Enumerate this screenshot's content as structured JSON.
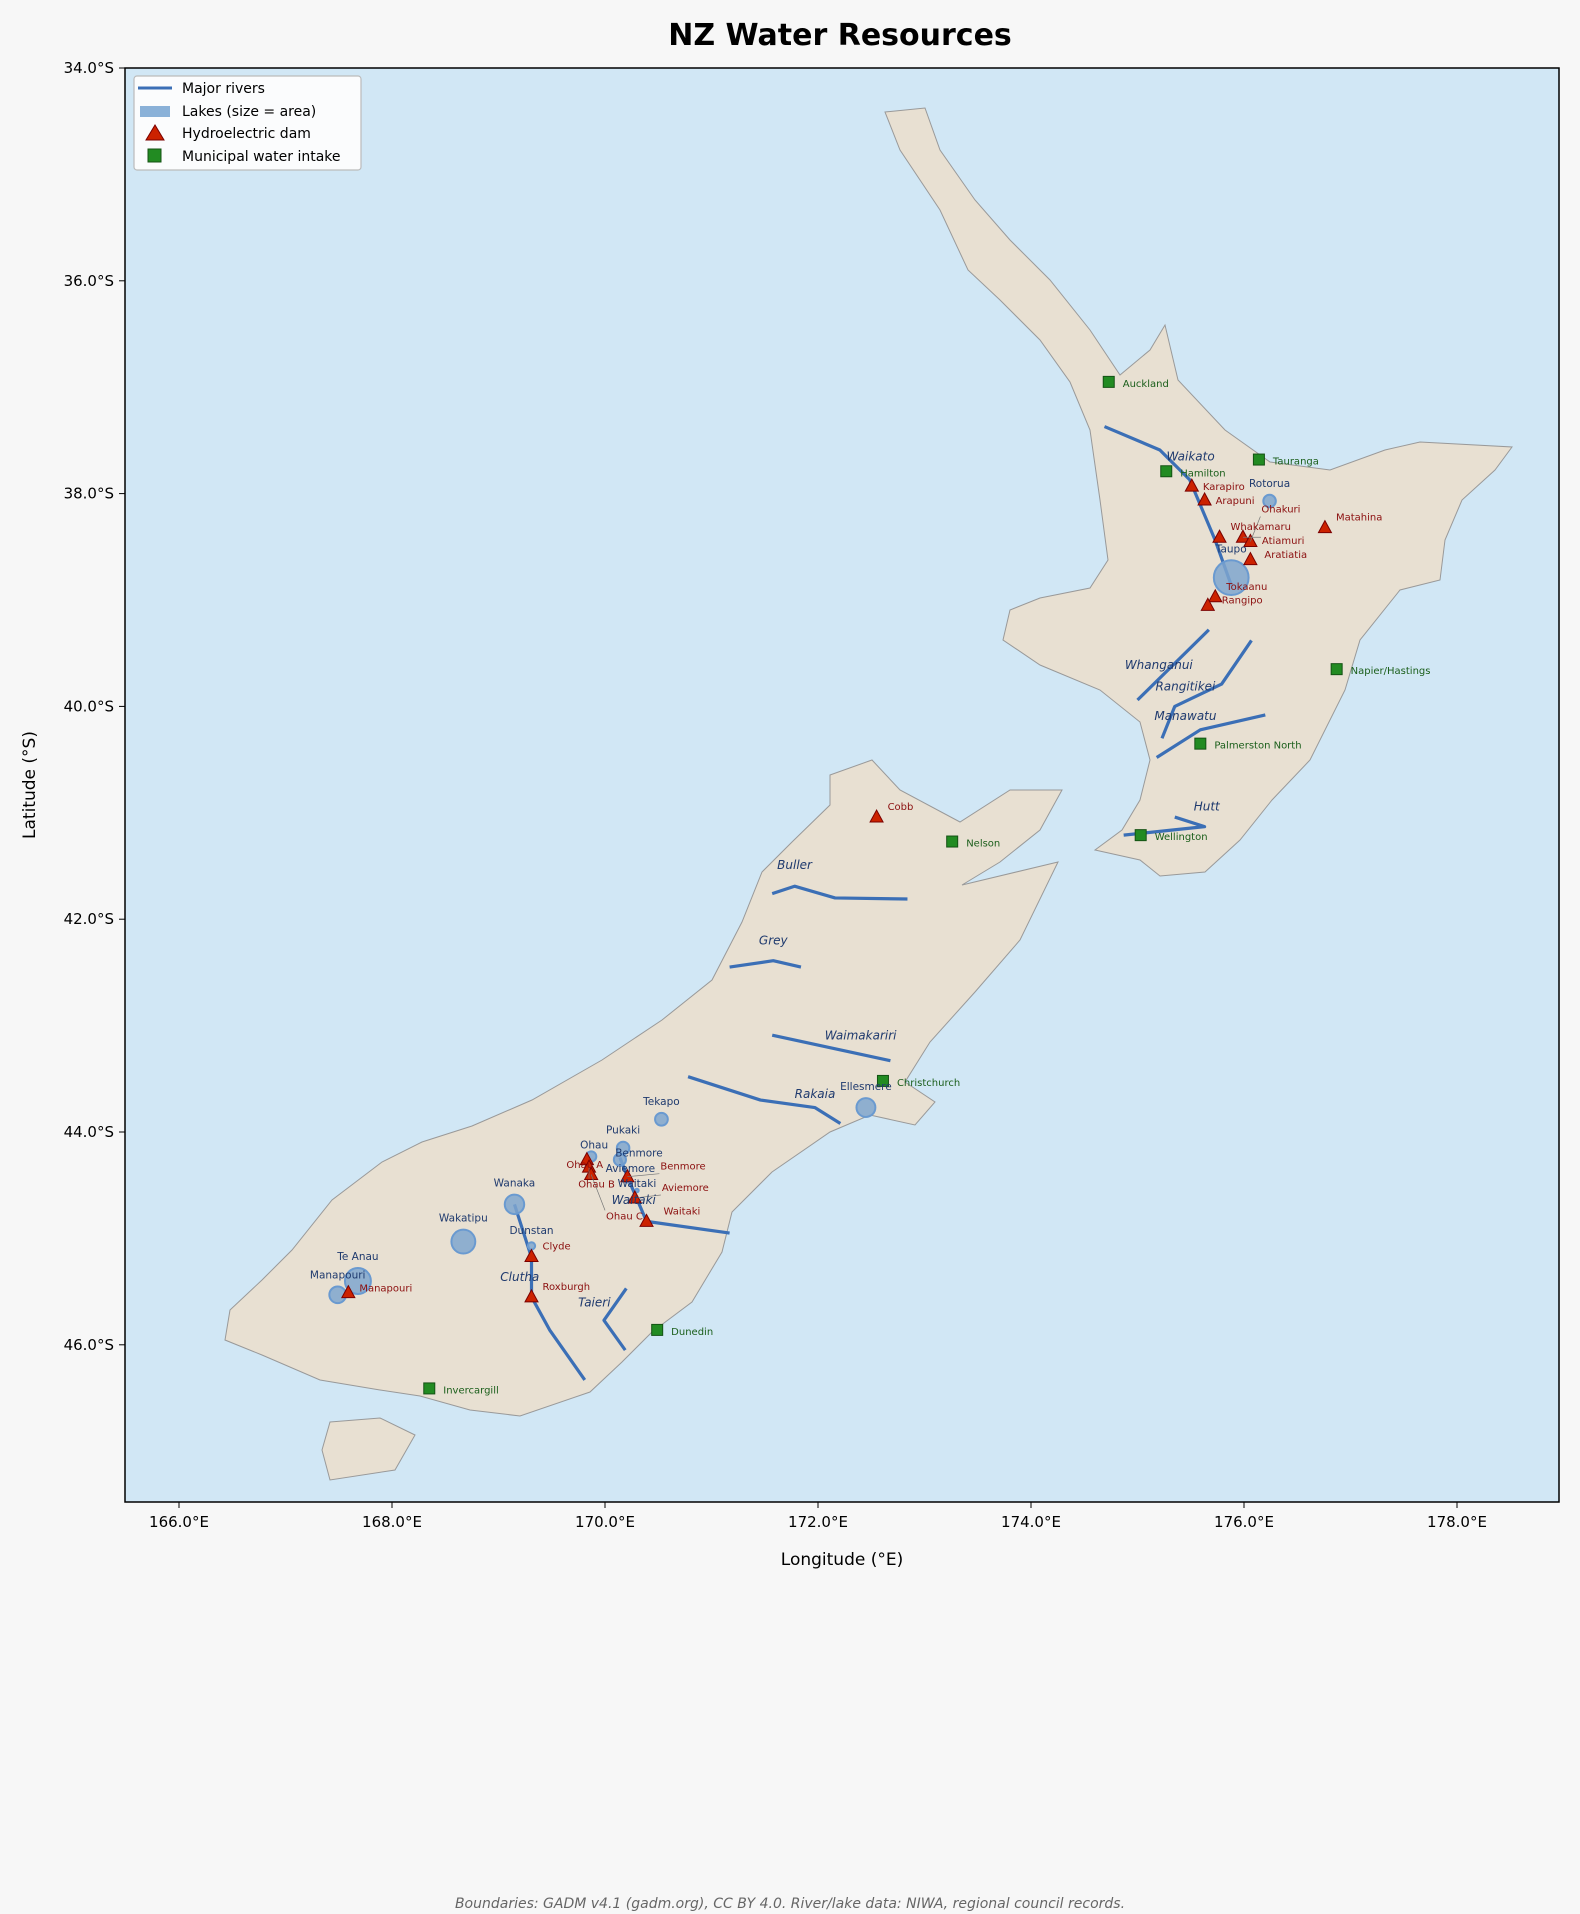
{
  "title": "NZ Water Resources",
  "xlabel": "Longitude (°E)",
  "ylabel": "Latitude (°S)",
  "footer": "Boundaries: GADM v4.1 (gadm.org), CC BY 4.0. River/lake data: NIWA, regional council records.",
  "colors": {
    "ocean": "#d1e7f5",
    "land": "#e8e0d2",
    "border": "#999999",
    "river": "#3b6fb6",
    "lake": "#7fa6cf",
    "dam": "#cc2200",
    "dam_label": "#8b0f0f",
    "intake": "#228b22",
    "intake_label": "#1a5e1a",
    "lake_label": "#1f3a6e"
  },
  "legend": {
    "position": "top-left",
    "items": [
      "Major rivers",
      "Lakes (size = area)",
      "Hydroelectric dam",
      "Municipal water intake"
    ]
  },
  "chart_data": {
    "type": "map",
    "xlim": [
      165.5,
      179.0
    ],
    "ylim": [
      -47.5,
      -34.0
    ],
    "xticks": [
      "166.0°E",
      "168.0°E",
      "170.0°E",
      "172.0°E",
      "174.0°E",
      "176.0°E",
      "178.0°E"
    ],
    "xtick_values": [
      166,
      168,
      170,
      172,
      174,
      176,
      178
    ],
    "yticks": [
      "34.0°S",
      "36.0°S",
      "38.0°S",
      "40.0°S",
      "42.0°S",
      "44.0°S",
      "46.0°S"
    ],
    "ytick_values": [
      -34,
      -36,
      -38,
      -40,
      -42,
      -44,
      -46
    ],
    "rivers": [
      {
        "name": "Waikato",
        "path": [
          [
            174.69,
            -37.37
          ],
          [
            175.21,
            -37.59
          ],
          [
            175.49,
            -37.87
          ],
          [
            175.73,
            -38.44
          ],
          [
            175.88,
            -38.86
          ]
        ],
        "label_at": [
          175.55,
          -37.78
        ]
      },
      {
        "name": "Whanganui",
        "path": [
          [
            175.0,
            -39.94
          ],
          [
            175.67,
            -39.28
          ]
        ],
        "label_at": [
          175.2,
          -39.65
        ]
      },
      {
        "name": "Rangitikei",
        "path": [
          [
            175.23,
            -40.3
          ],
          [
            175.35,
            -40.0
          ],
          [
            175.79,
            -39.79
          ],
          [
            176.07,
            -39.38
          ]
        ],
        "label_at": [
          175.45,
          -39.85
        ]
      },
      {
        "name": "Manawatu",
        "path": [
          [
            175.18,
            -40.48
          ],
          [
            175.59,
            -40.22
          ],
          [
            176.2,
            -40.08
          ]
        ],
        "label_at": [
          175.45,
          -40.13
        ]
      },
      {
        "name": "Hutt",
        "path": [
          [
            174.87,
            -41.21
          ],
          [
            175.63,
            -41.13
          ],
          [
            175.35,
            -41.04
          ]
        ],
        "label_at": [
          175.65,
          -40.98
        ]
      },
      {
        "name": "Buller",
        "path": [
          [
            171.57,
            -41.76
          ],
          [
            171.78,
            -41.69
          ],
          [
            172.16,
            -41.8
          ],
          [
            172.84,
            -41.81
          ]
        ],
        "label_at": [
          171.78,
          -41.53
        ]
      },
      {
        "name": "Grey",
        "path": [
          [
            171.17,
            -42.45
          ],
          [
            171.58,
            -42.39
          ],
          [
            171.84,
            -42.45
          ]
        ],
        "label_at": [
          171.58,
          -42.24
        ]
      },
      {
        "name": "Waimakariri",
        "path": [
          [
            171.57,
            -43.09
          ],
          [
            172.68,
            -43.33
          ]
        ],
        "label_at": [
          172.4,
          -43.13
        ]
      },
      {
        "name": "Rakaia",
        "path": [
          [
            170.78,
            -43.48
          ],
          [
            171.46,
            -43.7
          ],
          [
            171.97,
            -43.77
          ],
          [
            172.21,
            -43.92
          ]
        ],
        "label_at": [
          172.0,
          -43.63
        ]
      },
      {
        "name": "Waitaki",
        "path": [
          [
            170.14,
            -44.24
          ],
          [
            170.21,
            -44.42
          ],
          [
            170.39,
            -44.84
          ],
          [
            171.17,
            -44.95
          ]
        ],
        "label_at": [
          170.27,
          -44.47
        ]
      },
      {
        "name": "Clutha",
        "path": [
          [
            169.15,
            -44.68
          ],
          [
            169.31,
            -45.18
          ],
          [
            169.31,
            -45.55
          ],
          [
            169.48,
            -45.86
          ],
          [
            169.81,
            -46.33
          ]
        ],
        "label_at": [
          169.2,
          -45.4
        ]
      },
      {
        "name": "Taieri",
        "path": [
          [
            170.2,
            -45.47
          ],
          [
            169.99,
            -45.77
          ],
          [
            170.19,
            -46.05
          ]
        ],
        "label_at": [
          169.9,
          -45.64
        ]
      }
    ],
    "lakes": [
      {
        "name": "Taupo",
        "lon": 175.88,
        "lat": -38.79,
        "area_km2": 616
      },
      {
        "name": "Rotorua",
        "lon": 176.24,
        "lat": -38.07,
        "area_km2": 80
      },
      {
        "name": "Tekapo",
        "lon": 170.53,
        "lat": -43.88,
        "area_km2": 83
      },
      {
        "name": "Pukaki",
        "lon": 170.17,
        "lat": -44.15,
        "area_km2": 80
      },
      {
        "name": "Ohau",
        "lon": 169.87,
        "lat": -44.23,
        "area_km2": 54
      },
      {
        "name": "Benmore",
        "lon": 170.14,
        "lat": -44.26,
        "area_km2": 75
      },
      {
        "name": "Aviemore",
        "lon": 170.21,
        "lat": -44.44,
        "area_km2": 29
      },
      {
        "name": "Waitaki",
        "lon": 170.3,
        "lat": -44.55,
        "area_km2": 6
      },
      {
        "name": "Ellesmere",
        "lon": 172.45,
        "lat": -43.77,
        "area_km2": 182
      },
      {
        "name": "Wanaka",
        "lon": 169.15,
        "lat": -44.68,
        "area_km2": 193
      },
      {
        "name": "Wakatipu",
        "lon": 168.67,
        "lat": -45.03,
        "area_km2": 291
      },
      {
        "name": "Dunstan",
        "lon": 169.31,
        "lat": -45.07,
        "area_km2": 27
      },
      {
        "name": "Te Anau",
        "lon": 167.68,
        "lat": -45.4,
        "area_km2": 344
      },
      {
        "name": "Manapouri",
        "lon": 167.49,
        "lat": -45.53,
        "area_km2": 142
      }
    ],
    "dams": [
      {
        "name": "Karapiro",
        "lon": 175.51,
        "lat": -37.93
      },
      {
        "name": "Arapuni",
        "lon": 175.63,
        "lat": -38.06
      },
      {
        "name": "Whakamaru",
        "lon": 175.77,
        "lat": -38.41
      },
      {
        "name": "Atiamuri",
        "lon": 175.99,
        "lat": -38.41
      },
      {
        "name": "Ohakuri",
        "lon": 176.06,
        "lat": -38.45
      },
      {
        "name": "Aratiatia",
        "lon": 176.06,
        "lat": -38.62
      },
      {
        "name": "Matahina",
        "lon": 176.76,
        "lat": -38.32
      },
      {
        "name": "Tokaanu",
        "lon": 175.73,
        "lat": -38.97
      },
      {
        "name": "Rangipo",
        "lon": 175.66,
        "lat": -39.05
      },
      {
        "name": "Cobb",
        "lon": 172.55,
        "lat": -41.04
      },
      {
        "name": "Ohau A",
        "lon": 169.83,
        "lat": -44.26
      },
      {
        "name": "Ohau B",
        "lon": 169.85,
        "lat": -44.33
      },
      {
        "name": "Ohau C",
        "lon": 169.87,
        "lat": -44.4
      },
      {
        "name": "Benmore",
        "lon": 170.21,
        "lat": -44.42
      },
      {
        "name": "Aviemore",
        "lon": 170.28,
        "lat": -44.62
      },
      {
        "name": "Waitaki",
        "lon": 170.39,
        "lat": -44.84
      },
      {
        "name": "Clyde",
        "lon": 169.31,
        "lat": -45.17
      },
      {
        "name": "Roxburgh",
        "lon": 169.31,
        "lat": -45.55
      },
      {
        "name": "Manapouri",
        "lon": 167.59,
        "lat": -45.51
      }
    ],
    "intakes": [
      {
        "name": "Auckland",
        "lon": 174.73,
        "lat": -36.95
      },
      {
        "name": "Hamilton",
        "lon": 175.27,
        "lat": -37.79
      },
      {
        "name": "Tauranga",
        "lon": 176.14,
        "lat": -37.68
      },
      {
        "name": "Napier/Hastings",
        "lon": 176.87,
        "lat": -39.65
      },
      {
        "name": "Palmerston North",
        "lon": 175.59,
        "lat": -40.35
      },
      {
        "name": "Wellington",
        "lon": 175.03,
        "lat": -41.21
      },
      {
        "name": "Nelson",
        "lon": 173.26,
        "lat": -41.27
      },
      {
        "name": "Christchurch",
        "lon": 172.61,
        "lat": -43.52
      },
      {
        "name": "Dunedin",
        "lon": 170.49,
        "lat": -45.86
      },
      {
        "name": "Invercargill",
        "lon": 168.35,
        "lat": -46.41
      }
    ]
  }
}
